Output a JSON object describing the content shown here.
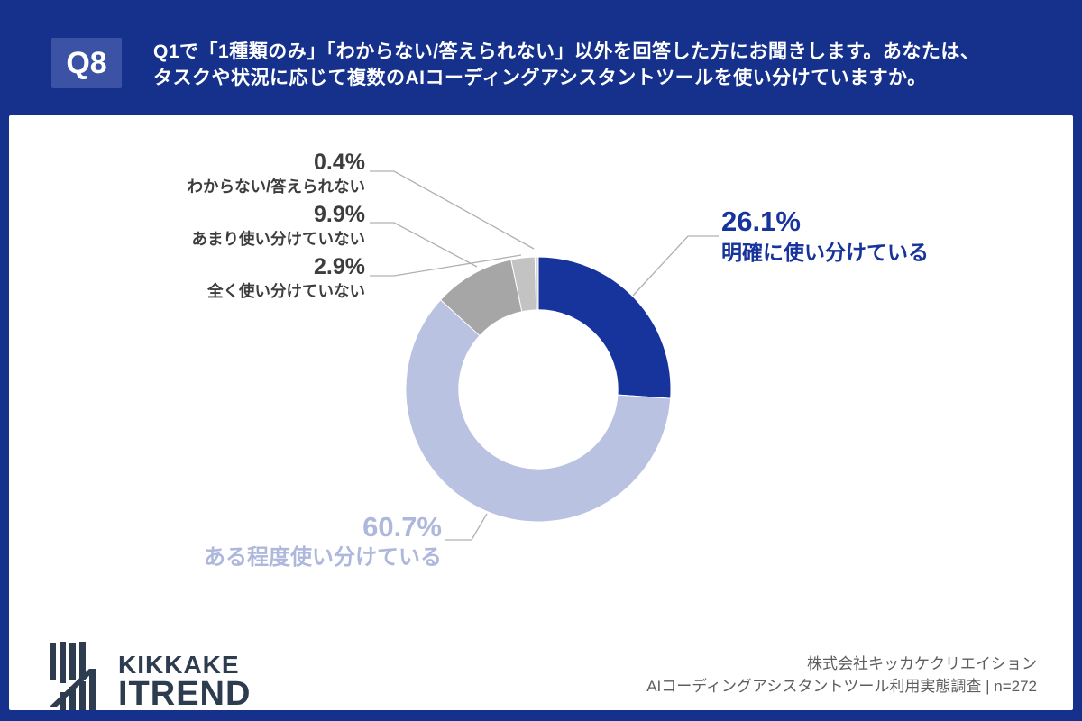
{
  "header": {
    "question_label": "Q8",
    "question_line1": "Q1で「1種類のみ」「わからない/答えられない」以外を回答した方にお聞きします。あなたは、",
    "question_line2": "タスクや状況に応じて複数のAIコーディングアシスタントツールを使い分けていますか。"
  },
  "chart_data": {
    "type": "pie",
    "subtype": "donut",
    "start_angle_deg": 0,
    "direction": "clockwise",
    "inner_radius_ratio": 0.6,
    "title": "",
    "segments": [
      {
        "label": "明確に使い分けている",
        "value": 26.1,
        "pct_label": "26.1%",
        "color": "#17339c"
      },
      {
        "label": "ある程度使い分けている",
        "value": 60.7,
        "pct_label": "60.7%",
        "color": "#b9c2e0"
      },
      {
        "label": "あまり使い分けていない",
        "value": 9.9,
        "pct_label": "9.9%",
        "color": "#a6a6a6"
      },
      {
        "label": "全く使い分けていない",
        "value": 2.9,
        "pct_label": "2.9%",
        "color": "#c3c3c3"
      },
      {
        "label": "わからない/答えられない",
        "value": 0.4,
        "pct_label": "0.4%",
        "color": "#d8d8d8"
      }
    ]
  },
  "footer": {
    "logo_line1": "KIKKAKE",
    "logo_line2": "ITREND",
    "credit_line1": "株式会社キッカケクリエイション",
    "credit_line2": "AIコーディングアシスタントツール利用実態調査 | n=272"
  },
  "colors": {
    "page_background": "#16318c",
    "question_badge": "#3c52a5",
    "card_background": "#ffffff",
    "accent_blue": "#17339c",
    "periwinkle": "#b9c2e0",
    "small_label_text": "#3d3d3d",
    "leader_line": "#b0b0b0",
    "logo_navy": "#2e3c50",
    "credit_text": "#5e5e5e"
  }
}
